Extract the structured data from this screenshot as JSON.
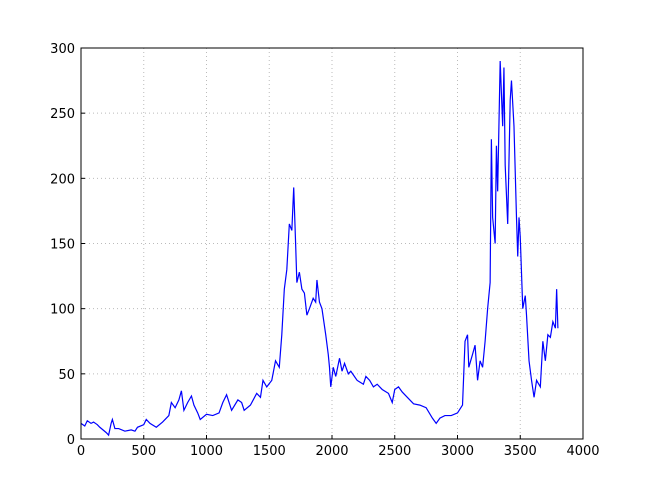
{
  "chart_data": {
    "type": "line",
    "x": [
      0,
      30,
      50,
      80,
      100,
      130,
      150,
      200,
      220,
      240,
      250,
      270,
      300,
      350,
      400,
      430,
      450,
      500,
      520,
      550,
      600,
      650,
      700,
      720,
      750,
      780,
      800,
      820,
      850,
      880,
      900,
      930,
      950,
      1000,
      1050,
      1100,
      1130,
      1160,
      1200,
      1250,
      1280,
      1300,
      1350,
      1400,
      1430,
      1450,
      1480,
      1520,
      1550,
      1580,
      1600,
      1620,
      1640,
      1660,
      1680,
      1695,
      1710,
      1720,
      1740,
      1760,
      1780,
      1800,
      1820,
      1850,
      1870,
      1880,
      1900,
      1920,
      1950,
      1970,
      1980,
      1990,
      2010,
      2030,
      2060,
      2080,
      2100,
      2130,
      2150,
      2200,
      2250,
      2270,
      2300,
      2330,
      2360,
      2400,
      2450,
      2480,
      2500,
      2530,
      2560,
      2600,
      2650,
      2700,
      2750,
      2800,
      2830,
      2860,
      2900,
      2950,
      3000,
      3040,
      3060,
      3080,
      3090,
      3120,
      3140,
      3160,
      3180,
      3200,
      3220,
      3240,
      3260,
      3270,
      3280,
      3300,
      3310,
      3320,
      3340,
      3360,
      3370,
      3380,
      3400,
      3420,
      3430,
      3450,
      3470,
      3480,
      3490,
      3500,
      3520,
      3540,
      3550,
      3570,
      3590,
      3610,
      3630,
      3660,
      3680,
      3700,
      3720,
      3740,
      3760,
      3780,
      3790,
      3800
    ],
    "series": [
      {
        "color": "#0000ff",
        "values": [
          12,
          10,
          14,
          12,
          13,
          11,
          9,
          5,
          3,
          12,
          15,
          8,
          8,
          6,
          7,
          6,
          9,
          11,
          15,
          12,
          9,
          13,
          18,
          28,
          24,
          30,
          37,
          22,
          28,
          33,
          26,
          20,
          15,
          19,
          18,
          20,
          28,
          34,
          22,
          30,
          28,
          22,
          26,
          35,
          32,
          45,
          40,
          45,
          60,
          55,
          80,
          115,
          130,
          165,
          160,
          193,
          150,
          120,
          128,
          115,
          112,
          95,
          100,
          108,
          105,
          122,
          105,
          100,
          80,
          65,
          55,
          40,
          55,
          48,
          62,
          52,
          58,
          50,
          52,
          45,
          42,
          48,
          45,
          40,
          42,
          38,
          35,
          28,
          38,
          40,
          36,
          32,
          27,
          26,
          24,
          16,
          12,
          16,
          18,
          18,
          20,
          26,
          75,
          80,
          55,
          65,
          72,
          45,
          60,
          55,
          75,
          100,
          120,
          230,
          170,
          150,
          225,
          190,
          290,
          240,
          285,
          210,
          165,
          260,
          275,
          240,
          170,
          140,
          170,
          155,
          100,
          110,
          95,
          60,
          45,
          32,
          45,
          40,
          75,
          60,
          80,
          78,
          90,
          85,
          115,
          85
        ]
      }
    ],
    "xlim": [
      0,
      4000
    ],
    "xticks": [
      0,
      500,
      1000,
      1500,
      2000,
      2500,
      3000,
      3500,
      4000
    ],
    "ylim": [
      0,
      300
    ],
    "yticks": [
      0,
      50,
      100,
      150,
      200,
      250,
      300
    ],
    "grid": true
  }
}
